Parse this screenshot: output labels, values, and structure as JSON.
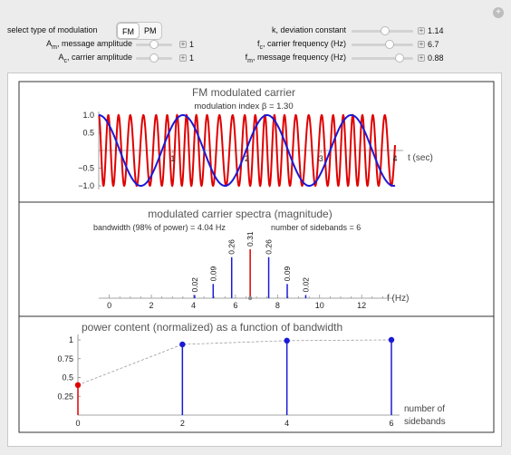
{
  "controls": {
    "modulation": {
      "label": "select type of modulation",
      "options": [
        "FM",
        "PM"
      ],
      "selected": "FM"
    },
    "message_amplitude": {
      "label_main": "A",
      "label_sub": "m",
      "label_rest": ", message amplitude",
      "value": "1",
      "position": 0.5
    },
    "carrier_amplitude": {
      "label_main": "A",
      "label_sub": "c",
      "label_rest": ", carrier amplitude",
      "value": "1",
      "position": 0.5
    },
    "deviation_constant": {
      "label": "k, deviation constant",
      "value": "1.14",
      "position": 0.55
    },
    "carrier_frequency": {
      "label_main": "f",
      "label_sub": "c",
      "label_rest": ", carrier frequency (Hz)",
      "value": "6.7",
      "position": 0.62
    },
    "message_frequency": {
      "label_main": "f",
      "label_sub": "m",
      "label_rest": ", message frequency (Hz)",
      "value": "0.88",
      "position": 0.78
    }
  },
  "close_icon": "plus-circle-icon",
  "chart_data": [
    {
      "type": "line",
      "title": "FM modulated carrier",
      "subtitle": "modulation index β = 1.30",
      "xlabel": "t (sec)",
      "xlim": [
        0,
        4
      ],
      "ylim": [
        -1.1,
        1.1
      ],
      "yticks": [
        "1.0",
        "0.5",
        "−0.5",
        "−1.0"
      ],
      "xticks": [
        "1",
        "2",
        "3",
        "4"
      ],
      "series": [
        {
          "role": "carrier",
          "color": "#e00000",
          "carrier_freq": 6.7,
          "mod_index": 1.3,
          "msg_freq": 0.88
        },
        {
          "role": "message",
          "color": "#1a1ad6",
          "msg_freq": 0.88
        }
      ]
    },
    {
      "type": "bar",
      "title": "modulated carrier spectra (magnitude)",
      "subtitle_left": "bandwidth (98% of power) = 4.04 Hz",
      "subtitle_right": "number of sidebands = 6",
      "xlabel": "f (Hz)",
      "xlim": [
        -0.5,
        13.5
      ],
      "xticks": [
        "0",
        "2",
        "4",
        "6",
        "8",
        "10",
        "12"
      ],
      "x": [
        4.06,
        4.94,
        5.82,
        6.7,
        7.58,
        8.46,
        9.34
      ],
      "values": [
        0.02,
        0.09,
        0.26,
        0.31,
        0.26,
        0.09,
        0.02
      ],
      "labels": [
        "0.02",
        "0.09",
        "0.26",
        "0.31",
        "0.26",
        "0.09",
        "0.02"
      ],
      "colors": [
        "#1a1ad6",
        "#1a1ad6",
        "#1a1ad6",
        "#e00000",
        "#1a1ad6",
        "#1a1ad6",
        "#1a1ad6"
      ]
    },
    {
      "type": "scatter",
      "title": "power content (normalized) as a function of bandwidth",
      "xlabel_line1": "number of",
      "xlabel_line2": "sidebands",
      "xticks": [
        "0",
        "2",
        "4",
        "6"
      ],
      "yticks": [
        "1",
        "0.75",
        "0.5",
        "0.25"
      ],
      "x": [
        0,
        2,
        4,
        6
      ],
      "values": [
        0.4,
        0.94,
        0.99,
        1.0
      ],
      "colors": [
        "#e00000",
        "#1a1ad6",
        "#1a1ad6",
        "#1a1ad6"
      ]
    }
  ]
}
